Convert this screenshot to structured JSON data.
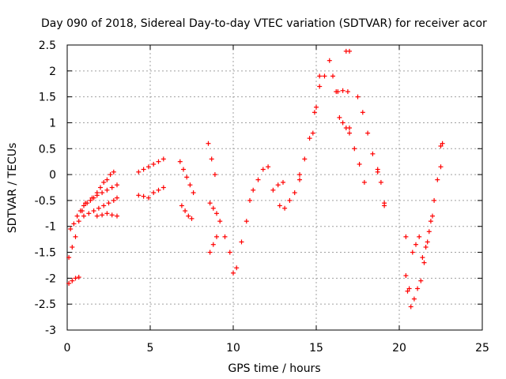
{
  "chart_data": {
    "type": "scatter",
    "title": "Day 090 of 2018, Sidereal Day-to-day VTEC variation (SDTVAR) for receiver acor",
    "xlabel": "GPS time / hours",
    "ylabel": "SDTVAR / TECUs",
    "xlim": [
      0,
      25
    ],
    "ylim": [
      -3,
      2.5
    ],
    "xticks": [
      "0",
      "5",
      "10",
      "15",
      "20",
      "25"
    ],
    "yticks": [
      "-3",
      "-2.5",
      "-2",
      "-1.5",
      "-1",
      "-0.5",
      "0",
      "0.5",
      "1",
      "1.5",
      "2",
      "2.5"
    ],
    "grid": true,
    "marker": "plus",
    "color": "#ff0000",
    "segments": [
      {
        "x": [
          0.1,
          0.3,
          0.5,
          0.7
        ],
        "y": [
          -2.1,
          -2.05,
          -2.0,
          -1.98
        ]
      },
      {
        "x": [
          0.1,
          0.3,
          0.5,
          0.7,
          0.9,
          1.1
        ],
        "y": [
          -1.6,
          -1.4,
          -1.2,
          -0.9,
          -0.7,
          -0.55
        ]
      },
      {
        "x": [
          0.2,
          0.4,
          0.6,
          0.8,
          1.0,
          1.2,
          1.4,
          1.6,
          1.8,
          2.0,
          2.2,
          2.4,
          2.6,
          2.8
        ],
        "y": [
          -1.05,
          -0.95,
          -0.8,
          -0.7,
          -0.6,
          -0.55,
          -0.5,
          -0.45,
          -0.35,
          -0.25,
          -0.15,
          -0.1,
          0.0,
          0.05
        ]
      },
      {
        "x": [
          1.0,
          1.3,
          1.6,
          1.9,
          2.2,
          2.5,
          2.8,
          3.0
        ],
        "y": [
          -0.8,
          -0.75,
          -0.7,
          -0.65,
          -0.6,
          -0.55,
          -0.5,
          -0.45
        ]
      },
      {
        "x": [
          1.5,
          1.8,
          2.1,
          2.4,
          2.7,
          3.0
        ],
        "y": [
          -0.45,
          -0.4,
          -0.35,
          -0.3,
          -0.25,
          -0.2
        ]
      },
      {
        "x": [
          1.8,
          2.1,
          2.4,
          2.7,
          3.0
        ],
        "y": [
          -0.8,
          -0.78,
          -0.75,
          -0.78,
          -0.8
        ]
      },
      {
        "x": [
          4.3,
          4.6,
          4.9,
          5.2,
          5.5,
          5.8
        ],
        "y": [
          0.05,
          0.1,
          0.15,
          0.2,
          0.25,
          0.3
        ]
      },
      {
        "x": [
          4.3,
          4.6,
          4.9,
          5.2,
          5.5,
          5.8
        ],
        "y": [
          -0.4,
          -0.42,
          -0.45,
          -0.35,
          -0.3,
          -0.25
        ]
      },
      {
        "x": [
          6.8,
          7.0,
          7.2,
          7.4,
          7.6
        ],
        "y": [
          0.25,
          0.1,
          -0.05,
          -0.2,
          -0.35
        ]
      },
      {
        "x": [
          6.9,
          7.1,
          7.3,
          7.5
        ],
        "y": [
          -0.6,
          -0.7,
          -0.8,
          -0.85
        ]
      },
      {
        "x": [
          8.5,
          8.7,
          8.9
        ],
        "y": [
          0.6,
          0.3,
          0.0
        ]
      },
      {
        "x": [
          8.6,
          8.8,
          9.0
        ],
        "y": [
          -0.55,
          -0.65,
          -0.75
        ]
      },
      {
        "x": [
          8.6,
          8.8,
          9.0
        ],
        "y": [
          -1.5,
          -1.35,
          -1.2
        ]
      },
      {
        "x": [
          9.2,
          9.5,
          9.8,
          10.0
        ],
        "y": [
          -0.9,
          -1.2,
          -1.5,
          -1.9
        ]
      },
      {
        "x": [
          10.2,
          10.5,
          10.8,
          11.0
        ],
        "y": [
          -1.8,
          -1.3,
          -0.9,
          -0.5
        ]
      },
      {
        "x": [
          11.2,
          11.5,
          11.8,
          12.1
        ],
        "y": [
          -0.3,
          -0.1,
          0.1,
          0.15
        ]
      },
      {
        "x": [
          12.8,
          13.1,
          13.4,
          13.7,
          14.0
        ],
        "y": [
          -0.6,
          -0.65,
          -0.5,
          -0.35,
          -0.1
        ]
      },
      {
        "x": [
          12.4,
          12.7,
          13.0
        ],
        "y": [
          -0.3,
          -0.2,
          -0.15
        ]
      },
      {
        "x": [
          14.0,
          14.3,
          14.6,
          14.9,
          15.2
        ],
        "y": [
          0.0,
          0.3,
          0.7,
          1.2,
          1.7
        ]
      },
      {
        "x": [
          14.8,
          15.0,
          15.2
        ],
        "y": [
          0.8,
          1.3,
          1.9
        ]
      },
      {
        "x": [
          15.5,
          15.8,
          16.0,
          16.2
        ],
        "y": [
          1.9,
          2.2,
          1.9,
          1.6
        ]
      },
      {
        "x": [
          16.3,
          16.6,
          16.9
        ],
        "y": [
          1.6,
          1.62,
          1.6
        ]
      },
      {
        "x": [
          16.8,
          17.0
        ],
        "y": [
          2.38,
          2.38
        ]
      },
      {
        "x": [
          16.4,
          16.6,
          16.8,
          17.0
        ],
        "y": [
          1.1,
          1.0,
          0.9,
          0.8
        ]
      },
      {
        "x": [
          17.0,
          17.3,
          17.6,
          17.9
        ],
        "y": [
          0.9,
          0.5,
          0.2,
          -0.15
        ]
      },
      {
        "x": [
          17.5,
          17.8,
          18.1,
          18.4,
          18.7
        ],
        "y": [
          1.5,
          1.2,
          0.8,
          0.4,
          0.1
        ]
      },
      {
        "x": [
          18.7,
          18.9,
          19.1
        ],
        "y": [
          0.05,
          -0.15,
          -0.55
        ]
      },
      {
        "x": [
          19.1
        ],
        "y": [
          -0.6
        ]
      },
      {
        "x": [
          20.4
        ],
        "y": [
          -1.2
        ]
      },
      {
        "x": [
          20.4,
          20.6
        ],
        "y": [
          -1.95,
          -2.2
        ]
      },
      {
        "x": [
          20.5
        ],
        "y": [
          -2.25
        ]
      },
      {
        "x": [
          20.8,
          21.0,
          21.2
        ],
        "y": [
          -1.5,
          -1.35,
          -1.2
        ]
      },
      {
        "x": [
          20.7,
          20.9,
          21.1,
          21.3
        ],
        "y": [
          -2.55,
          -2.4,
          -2.2,
          -2.05
        ]
      },
      {
        "x": [
          21.5,
          21.7,
          21.9,
          22.1,
          22.3,
          22.5
        ],
        "y": [
          -1.7,
          -1.3,
          -0.9,
          -0.5,
          -0.1,
          0.15
        ]
      },
      {
        "x": [
          21.4,
          21.6,
          21.8,
          22.0
        ],
        "y": [
          -1.6,
          -1.4,
          -1.1,
          -0.8
        ]
      },
      {
        "x": [
          22.5,
          22.6
        ],
        "y": [
          0.55,
          0.6
        ]
      }
    ]
  }
}
